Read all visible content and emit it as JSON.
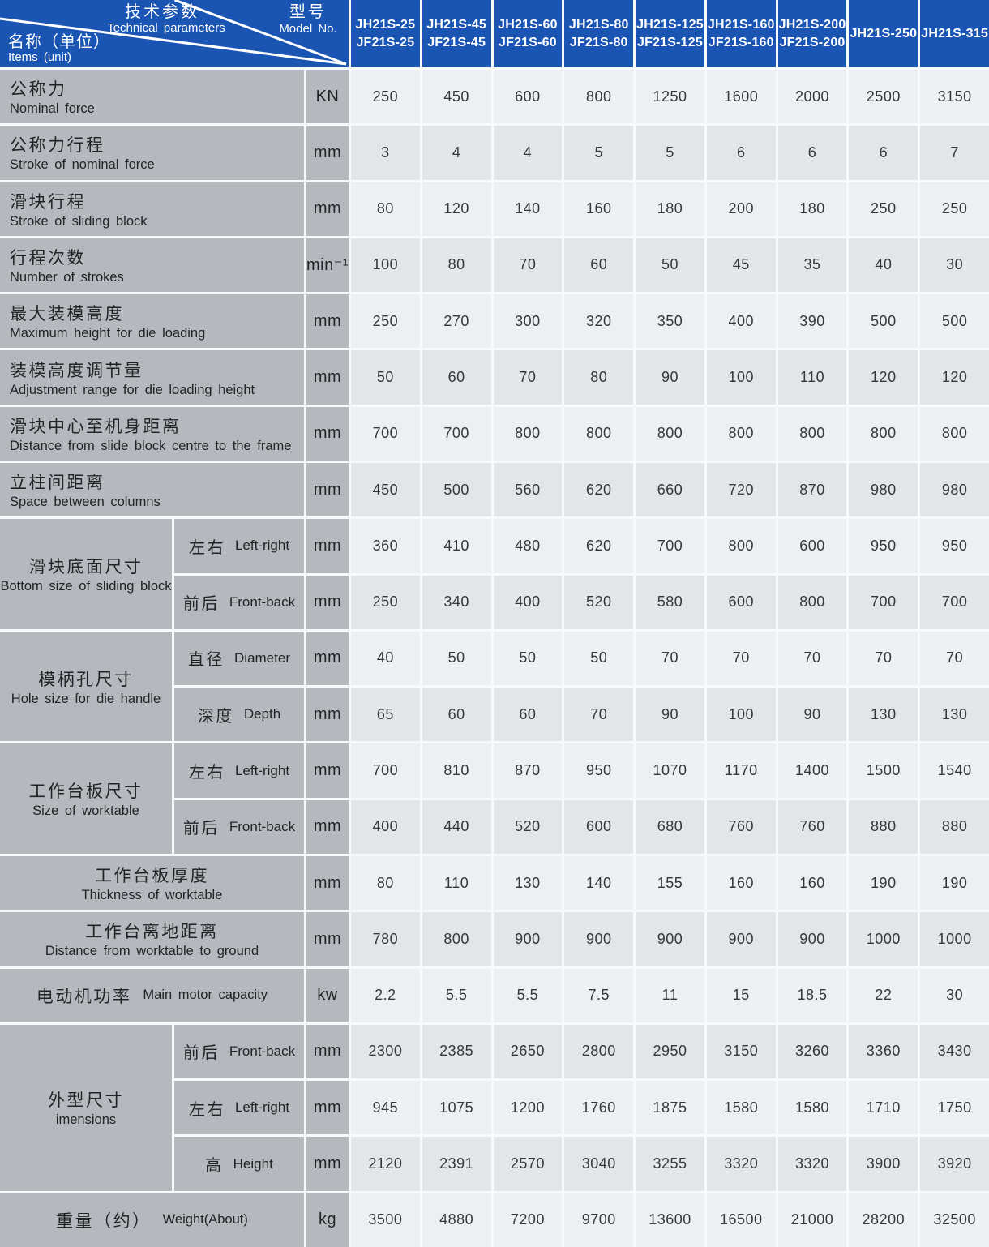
{
  "table_title": "Technical parameters table for JH21S / JF21S presses",
  "colors": {
    "header_blue": "#1a55b4",
    "label_gray": "#b5b9bd",
    "cell_light": "#edeff1",
    "cell_dark": "#e3e6e9",
    "gridline": "#f8f9fb",
    "header_text": "#ffffff"
  },
  "header": {
    "corner": {
      "param_zh": "技术参数",
      "param_en": "Technical parameters",
      "model_zh": "型号",
      "model_en": "Model No.",
      "items_zh": "名称（单位）",
      "items_en": "Items (unit)"
    },
    "models": [
      {
        "line1": "JH21S-25",
        "line2": "JF21S-25"
      },
      {
        "line1": "JH21S-45",
        "line2": "JF21S-45"
      },
      {
        "line1": "JH21S-60",
        "line2": "JF21S-60"
      },
      {
        "line1": "JH21S-80",
        "line2": "JF21S-80"
      },
      {
        "line1": "JH21S-125",
        "line2": "JF21S-125"
      },
      {
        "line1": "JH21S-160",
        "line2": "JF21S-160"
      },
      {
        "line1": "JH21S-200",
        "line2": "JF21S-200"
      },
      {
        "line1": "JH21S-250",
        "line2": ""
      },
      {
        "line1": "JH21S-315",
        "line2": ""
      }
    ]
  },
  "rows": [
    {
      "style": "left",
      "zh": "公称力",
      "en": "Nominal force",
      "unit": "KN",
      "values": [
        "250",
        "450",
        "600",
        "800",
        "1250",
        "1600",
        "2000",
        "2500",
        "3150"
      ]
    },
    {
      "style": "left",
      "zh": "公称力行程",
      "en": "Stroke of nominal force",
      "unit": "mm",
      "values": [
        "3",
        "4",
        "4",
        "5",
        "5",
        "6",
        "6",
        "6",
        "7"
      ]
    },
    {
      "style": "left",
      "zh": "滑块行程",
      "en": "Stroke of sliding block",
      "unit": "mm",
      "values": [
        "80",
        "120",
        "140",
        "160",
        "180",
        "200",
        "180",
        "250",
        "250"
      ]
    },
    {
      "style": "left",
      "zh": "行程次数",
      "en": "Number of strokes",
      "unit": "min⁻¹",
      "values": [
        "100",
        "80",
        "70",
        "60",
        "50",
        "45",
        "35",
        "40",
        "30"
      ]
    },
    {
      "style": "left",
      "zh": "最大装模高度",
      "en": "Maximum height for die loading",
      "unit": "mm",
      "values": [
        "250",
        "270",
        "300",
        "320",
        "350",
        "400",
        "390",
        "500",
        "500"
      ]
    },
    {
      "style": "left",
      "zh": "装模高度调节量",
      "en": "Adjustment range for die loading height",
      "unit": "mm",
      "values": [
        "50",
        "60",
        "70",
        "80",
        "90",
        "100",
        "110",
        "120",
        "120"
      ]
    },
    {
      "style": "left",
      "zh": "滑块中心至机身距离",
      "en": "Distance from slide block centre to the frame",
      "unit": "mm",
      "values": [
        "700",
        "700",
        "800",
        "800",
        "800",
        "800",
        "800",
        "800",
        "800"
      ]
    },
    {
      "style": "left",
      "zh": "立柱间距离",
      "en": "Space between columns",
      "unit": "mm",
      "values": [
        "450",
        "500",
        "560",
        "620",
        "660",
        "720",
        "870",
        "980",
        "980"
      ]
    },
    {
      "group": {
        "zh": "滑块底面尺寸",
        "en": "Bottom size of sliding block",
        "span": 2
      },
      "sub": {
        "zh": "左右",
        "en": "Left-right"
      },
      "unit": "mm",
      "values": [
        "360",
        "410",
        "480",
        "620",
        "700",
        "800",
        "600",
        "950",
        "950"
      ]
    },
    {
      "sub": {
        "zh": "前后",
        "en": "Front-back"
      },
      "unit": "mm",
      "values": [
        "250",
        "340",
        "400",
        "520",
        "580",
        "600",
        "800",
        "700",
        "700"
      ]
    },
    {
      "group": {
        "zh": "模柄孔尺寸",
        "en": "Hole size for die handle",
        "span": 2
      },
      "sub": {
        "zh": "直径",
        "en": "Diameter"
      },
      "unit": "mm",
      "values": [
        "40",
        "50",
        "50",
        "50",
        "70",
        "70",
        "70",
        "70",
        "70"
      ]
    },
    {
      "sub": {
        "zh": "深度",
        "en": "Depth"
      },
      "unit": "mm",
      "values": [
        "65",
        "60",
        "60",
        "70",
        "90",
        "100",
        "90",
        "130",
        "130"
      ]
    },
    {
      "group": {
        "zh": "工作台板尺寸",
        "en": "Size of worktable",
        "span": 2
      },
      "sub": {
        "zh": "左右",
        "en": "Left-right"
      },
      "unit": "mm",
      "values": [
        "700",
        "810",
        "870",
        "950",
        "1070",
        "1170",
        "1400",
        "1500",
        "1540"
      ]
    },
    {
      "sub": {
        "zh": "前后",
        "en": "Front-back"
      },
      "unit": "mm",
      "values": [
        "400",
        "440",
        "520",
        "600",
        "680",
        "760",
        "760",
        "880",
        "880"
      ]
    },
    {
      "style": "center2",
      "zh": "工作台板厚度",
      "en": "Thickness of worktable",
      "unit": "mm",
      "values": [
        "80",
        "110",
        "130",
        "140",
        "155",
        "160",
        "160",
        "190",
        "190"
      ]
    },
    {
      "style": "center2",
      "zh": "工作台离地距离",
      "en": "Distance from worktable to ground",
      "unit": "mm",
      "values": [
        "780",
        "800",
        "900",
        "900",
        "900",
        "900",
        "900",
        "1000",
        "1000"
      ]
    },
    {
      "style": "inline",
      "zh": "电动机功率",
      "en": "Main motor capacity",
      "unit": "kw",
      "values": [
        "2.2",
        "5.5",
        "5.5",
        "7.5",
        "11",
        "15",
        "18.5",
        "22",
        "30"
      ]
    },
    {
      "group": {
        "zh": "外型尺寸",
        "en": "imensions",
        "span": 3
      },
      "sub": {
        "zh": "前后",
        "en": "Front-back"
      },
      "unit": "mm",
      "values": [
        "2300",
        "2385",
        "2650",
        "2800",
        "2950",
        "3150",
        "3260",
        "3360",
        "3430"
      ]
    },
    {
      "sub": {
        "zh": "左右",
        "en": "Left-right"
      },
      "unit": "mm",
      "values": [
        "945",
        "1075",
        "1200",
        "1760",
        "1875",
        "1580",
        "1580",
        "1710",
        "1750"
      ]
    },
    {
      "sub": {
        "zh": "高",
        "en": "Height"
      },
      "unit": "mm",
      "values": [
        "2120",
        "2391",
        "2570",
        "3040",
        "3255",
        "3320",
        "3320",
        "3900",
        "3920"
      ]
    },
    {
      "style": "inline",
      "zh": "重量（约）",
      "en": "Weight(About)",
      "unit": "kg",
      "values": [
        "3500",
        "4880",
        "7200",
        "9700",
        "13600",
        "16500",
        "21000",
        "28200",
        "32500"
      ]
    }
  ]
}
